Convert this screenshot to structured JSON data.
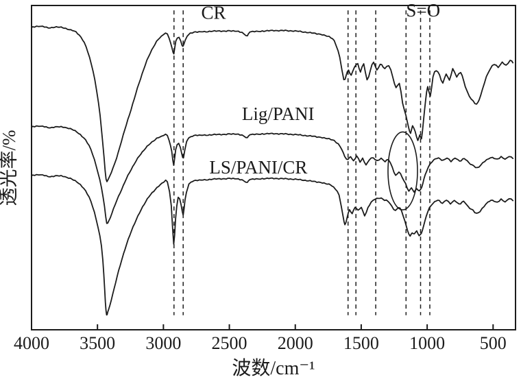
{
  "figure": {
    "background": "#ffffff",
    "ink": "#1b1b1b"
  },
  "chart_data": {
    "type": "line",
    "title": "",
    "xlabel": "波数/cm⁻¹",
    "ylabel": "透光率/%",
    "x_range": [
      4000,
      330
    ],
    "y_range": [
      0,
      100
    ],
    "x_axis_reversed": true,
    "grid": false,
    "legend_position": "inline-labels",
    "x_ticks": [
      4000,
      3500,
      3000,
      2500,
      2000,
      1500,
      1000,
      500
    ],
    "dashed_guides": {
      "x": [
        2920,
        2850,
        1600,
        1540,
        1390,
        1160,
        1050,
        980
      ],
      "y_span": [
        4.5,
        98.5
      ]
    },
    "ellipse_annotation": {
      "cx": 1185,
      "cy": 49,
      "rx": 112,
      "ry": 12
    },
    "annotations": [
      {
        "id": "cr",
        "text": "CR",
        "x": 2620,
        "y": 97.2
      },
      {
        "id": "so",
        "text": "S=O",
        "x": 1030,
        "y": 97.9
      },
      {
        "id": "lig-pani",
        "text": "Lig/PANI",
        "x": 2130,
        "y": 66.0
      },
      {
        "id": "ls-pani-cr",
        "text": "LS/PANI/CR",
        "x": 2280,
        "y": 49.5
      }
    ],
    "series": [
      {
        "name": "CR",
        "points": [
          [
            4000,
            93.2
          ],
          [
            3930,
            93.6
          ],
          [
            3860,
            93.1
          ],
          [
            3800,
            93.4
          ],
          [
            3740,
            92.9
          ],
          [
            3690,
            92.3
          ],
          [
            3650,
            91.3
          ],
          [
            3600,
            88.6
          ],
          [
            3560,
            84.0
          ],
          [
            3520,
            77.0
          ],
          [
            3480,
            66.0
          ],
          [
            3450,
            53.0
          ],
          [
            3435,
            46.5
          ],
          [
            3420,
            46.2
          ],
          [
            3395,
            48.5
          ],
          [
            3355,
            53.0
          ],
          [
            3305,
            60.0
          ],
          [
            3245,
            68.0
          ],
          [
            3185,
            76.0
          ],
          [
            3125,
            83.0
          ],
          [
            3065,
            88.0
          ],
          [
            3015,
            90.5
          ],
          [
            2970,
            91.2
          ],
          [
            2936,
            87.0
          ],
          [
            2921,
            85.2
          ],
          [
            2906,
            89.0
          ],
          [
            2882,
            90.2
          ],
          [
            2858,
            87.6
          ],
          [
            2846,
            88.0
          ],
          [
            2820,
            90.6
          ],
          [
            2780,
            91.6
          ],
          [
            2700,
            91.9
          ],
          [
            2600,
            92.1
          ],
          [
            2500,
            92.1
          ],
          [
            2420,
            91.9
          ],
          [
            2363,
            90.6
          ],
          [
            2344,
            91.9
          ],
          [
            2250,
            92.1
          ],
          [
            2150,
            92.3
          ],
          [
            2050,
            92.2
          ],
          [
            1950,
            91.9
          ],
          [
            1850,
            91.4
          ],
          [
            1760,
            90.6
          ],
          [
            1705,
            89.0
          ],
          [
            1663,
            84.0
          ],
          [
            1632,
            77.0
          ],
          [
            1614,
            78.6
          ],
          [
            1596,
            80.0
          ],
          [
            1576,
            78.5
          ],
          [
            1551,
            81.0
          ],
          [
            1526,
            82.0
          ],
          [
            1506,
            79.5
          ],
          [
            1481,
            82.0
          ],
          [
            1456,
            77.0
          ],
          [
            1431,
            80.0
          ],
          [
            1406,
            82.5
          ],
          [
            1381,
            80.0
          ],
          [
            1356,
            82.0
          ],
          [
            1321,
            80.5
          ],
          [
            1291,
            81.5
          ],
          [
            1261,
            78.0
          ],
          [
            1236,
            74.5
          ],
          [
            1211,
            76.0
          ],
          [
            1186,
            70.0
          ],
          [
            1161,
            66.0
          ],
          [
            1141,
            62.5
          ],
          [
            1126,
            60.5
          ],
          [
            1111,
            63.0
          ],
          [
            1091,
            61.0
          ],
          [
            1071,
            58.5
          ],
          [
            1056,
            60.0
          ],
          [
            1043,
            59.0
          ],
          [
            1029,
            64.0
          ],
          [
            1011,
            71.0
          ],
          [
            996,
            75.0
          ],
          [
            976,
            72.0
          ],
          [
            956,
            78.0
          ],
          [
            931,
            80.0
          ],
          [
            906,
            78.5
          ],
          [
            881,
            76.0
          ],
          [
            856,
            79.0
          ],
          [
            831,
            77.0
          ],
          [
            806,
            80.5
          ],
          [
            776,
            78.0
          ],
          [
            746,
            79.5
          ],
          [
            711,
            75.0
          ],
          [
            681,
            72.0
          ],
          [
            651,
            70.5
          ],
          [
            626,
            69.5
          ],
          [
            606,
            71.0
          ],
          [
            581,
            74.0
          ],
          [
            551,
            78.0
          ],
          [
            521,
            80.5
          ],
          [
            491,
            82.0
          ],
          [
            461,
            81.0
          ],
          [
            431,
            82.5
          ],
          [
            401,
            81.5
          ],
          [
            371,
            83.0
          ],
          [
            350,
            82.5
          ]
        ]
      },
      {
        "name": "Lig/PANI",
        "points": [
          [
            4000,
            62.5
          ],
          [
            3930,
            62.8
          ],
          [
            3860,
            62.3
          ],
          [
            3790,
            62.6
          ],
          [
            3720,
            62.1
          ],
          [
            3670,
            61.4
          ],
          [
            3630,
            60.2
          ],
          [
            3590,
            58.5
          ],
          [
            3550,
            55.5
          ],
          [
            3510,
            50.5
          ],
          [
            3470,
            44.0
          ],
          [
            3447,
            38.0
          ],
          [
            3430,
            33.0
          ],
          [
            3414,
            33.5
          ],
          [
            3390,
            36.0
          ],
          [
            3352,
            40.0
          ],
          [
            3304,
            44.5
          ],
          [
            3244,
            49.5
          ],
          [
            3184,
            53.5
          ],
          [
            3124,
            56.5
          ],
          [
            3064,
            58.6
          ],
          [
            3014,
            59.6
          ],
          [
            2970,
            59.9
          ],
          [
            2937,
            55.0
          ],
          [
            2922,
            50.8
          ],
          [
            2907,
            55.5
          ],
          [
            2884,
            57.5
          ],
          [
            2860,
            54.2
          ],
          [
            2848,
            53.2
          ],
          [
            2824,
            58.0
          ],
          [
            2790,
            59.6
          ],
          [
            2700,
            60.0
          ],
          [
            2600,
            60.2
          ],
          [
            2500,
            60.3
          ],
          [
            2420,
            60.2
          ],
          [
            2363,
            59.2
          ],
          [
            2344,
            60.2
          ],
          [
            2250,
            60.4
          ],
          [
            2150,
            60.5
          ],
          [
            2050,
            60.3
          ],
          [
            1950,
            60.0
          ],
          [
            1850,
            59.6
          ],
          [
            1760,
            59.0
          ],
          [
            1705,
            58.2
          ],
          [
            1660,
            56.5
          ],
          [
            1625,
            53.5
          ],
          [
            1600,
            52.5
          ],
          [
            1580,
            53.5
          ],
          [
            1559,
            52.0
          ],
          [
            1534,
            53.5
          ],
          [
            1509,
            51.8
          ],
          [
            1489,
            52.8
          ],
          [
            1464,
            50.8
          ],
          [
            1439,
            52.5
          ],
          [
            1409,
            53.0
          ],
          [
            1379,
            52.0
          ],
          [
            1349,
            52.8
          ],
          [
            1319,
            51.8
          ],
          [
            1294,
            52.5
          ],
          [
            1264,
            50.0
          ],
          [
            1239,
            47.5
          ],
          [
            1214,
            48.8
          ],
          [
            1189,
            47.0
          ],
          [
            1164,
            45.0
          ],
          [
            1139,
            42.8
          ],
          [
            1119,
            43.8
          ],
          [
            1099,
            42.5
          ],
          [
            1079,
            43.5
          ],
          [
            1059,
            42.8
          ],
          [
            1041,
            44.0
          ],
          [
            1024,
            46.5
          ],
          [
            1004,
            49.0
          ],
          [
            979,
            51.0
          ],
          [
            949,
            52.3
          ],
          [
            914,
            53.0
          ],
          [
            879,
            52.2
          ],
          [
            849,
            53.0
          ],
          [
            819,
            52.0
          ],
          [
            789,
            53.0
          ],
          [
            754,
            52.0
          ],
          [
            719,
            52.8
          ],
          [
            684,
            51.5
          ],
          [
            649,
            50.6
          ],
          [
            619,
            50.0
          ],
          [
            594,
            50.8
          ],
          [
            564,
            52.0
          ],
          [
            534,
            52.8
          ],
          [
            504,
            53.2
          ],
          [
            469,
            52.5
          ],
          [
            439,
            53.3
          ],
          [
            409,
            52.6
          ],
          [
            379,
            53.5
          ],
          [
            350,
            53.0
          ]
        ]
      },
      {
        "name": "LS/PANI/CR",
        "points": [
          [
            4000,
            47.5
          ],
          [
            3930,
            47.8
          ],
          [
            3860,
            47.2
          ],
          [
            3790,
            47.5
          ],
          [
            3720,
            46.8
          ],
          [
            3670,
            46.0
          ],
          [
            3630,
            44.8
          ],
          [
            3590,
            42.8
          ],
          [
            3550,
            39.5
          ],
          [
            3510,
            34.0
          ],
          [
            3470,
            26.0
          ],
          [
            3452,
            17.0
          ],
          [
            3440,
            8.5
          ],
          [
            3431,
            4.8
          ],
          [
            3422,
            5.4
          ],
          [
            3406,
            7.5
          ],
          [
            3384,
            11.0
          ],
          [
            3350,
            16.5
          ],
          [
            3302,
            23.5
          ],
          [
            3242,
            30.5
          ],
          [
            3182,
            36.0
          ],
          [
            3122,
            40.3
          ],
          [
            3062,
            43.3
          ],
          [
            3012,
            45.0
          ],
          [
            2970,
            45.6
          ],
          [
            2940,
            38.0
          ],
          [
            2922,
            26.5
          ],
          [
            2908,
            34.0
          ],
          [
            2888,
            41.0
          ],
          [
            2866,
            38.5
          ],
          [
            2850,
            35.5
          ],
          [
            2836,
            40.0
          ],
          [
            2814,
            44.0
          ],
          [
            2790,
            45.6
          ],
          [
            2700,
            46.2
          ],
          [
            2600,
            46.5
          ],
          [
            2500,
            46.6
          ],
          [
            2420,
            46.4
          ],
          [
            2363,
            45.4
          ],
          [
            2344,
            46.4
          ],
          [
            2250,
            46.6
          ],
          [
            2150,
            46.7
          ],
          [
            2050,
            46.5
          ],
          [
            1950,
            46.2
          ],
          [
            1850,
            45.7
          ],
          [
            1760,
            45.0
          ],
          [
            1710,
            44.0
          ],
          [
            1668,
            41.5
          ],
          [
            1638,
            35.0
          ],
          [
            1624,
            32.5
          ],
          [
            1607,
            34.5
          ],
          [
            1589,
            37.0
          ],
          [
            1569,
            35.8
          ],
          [
            1547,
            37.8
          ],
          [
            1524,
            36.8
          ],
          [
            1499,
            37.8
          ],
          [
            1474,
            35.2
          ],
          [
            1449,
            37.5
          ],
          [
            1424,
            39.3
          ],
          [
            1394,
            40.3
          ],
          [
            1359,
            40.6
          ],
          [
            1324,
            40.0
          ],
          [
            1294,
            39.5
          ],
          [
            1267,
            38.0
          ],
          [
            1241,
            36.8
          ],
          [
            1217,
            37.8
          ],
          [
            1194,
            36.5
          ],
          [
            1169,
            33.5
          ],
          [
            1147,
            30.5
          ],
          [
            1129,
            28.8
          ],
          [
            1114,
            30.0
          ],
          [
            1097,
            29.5
          ],
          [
            1079,
            30.5
          ],
          [
            1061,
            29.0
          ],
          [
            1044,
            29.8
          ],
          [
            1027,
            32.0
          ],
          [
            1007,
            35.0
          ],
          [
            984,
            37.5
          ],
          [
            954,
            39.0
          ],
          [
            919,
            40.0
          ],
          [
            884,
            39.0
          ],
          [
            854,
            40.0
          ],
          [
            824,
            38.8
          ],
          [
            794,
            39.8
          ],
          [
            759,
            38.8
          ],
          [
            724,
            39.5
          ],
          [
            689,
            38.0
          ],
          [
            654,
            36.8
          ],
          [
            624,
            35.8
          ],
          [
            599,
            36.5
          ],
          [
            569,
            38.0
          ],
          [
            539,
            39.3
          ],
          [
            504,
            40.0
          ],
          [
            469,
            39.2
          ],
          [
            439,
            40.2
          ],
          [
            409,
            39.4
          ],
          [
            379,
            40.5
          ],
          [
            350,
            40.0
          ]
        ]
      }
    ]
  }
}
